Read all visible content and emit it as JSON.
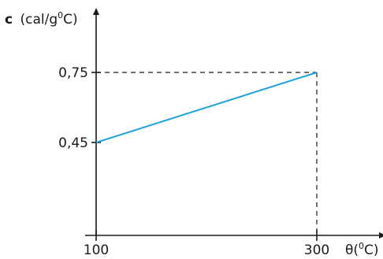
{
  "chart_data": {
    "type": "line",
    "x": [
      100,
      300
    ],
    "y": [
      0.45,
      0.75
    ],
    "x_ticks": [
      "100",
      "300"
    ],
    "y_ticks": [
      "0,45",
      "0,75"
    ],
    "ylabel": {
      "symbol": "c",
      "unit_prefix": "(cal/g",
      "unit_sup": "0",
      "unit_suffix": "C)"
    },
    "xlabel": {
      "symbol": "θ",
      "unit_prefix": "(",
      "unit_sup": "0",
      "unit_suffix": "C)"
    },
    "line_color": "#1ba3dd",
    "guide_lines": "dashed",
    "grid": false
  }
}
